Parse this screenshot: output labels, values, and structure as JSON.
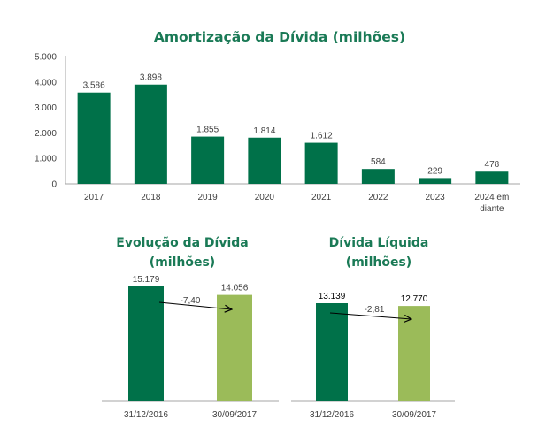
{
  "chart_data": [
    {
      "type": "bar",
      "title": "Amortização da Dívida (milhões)",
      "xlabel": "",
      "ylabel": "",
      "ylim": [
        0,
        5000
      ],
      "yticks": [
        0,
        1000,
        2000,
        3000,
        4000,
        5000
      ],
      "ytick_labels": [
        "0",
        "1.000",
        "2.000",
        "3.000",
        "4.000",
        "5.000"
      ],
      "grid": false,
      "categories": [
        "2017",
        "2018",
        "2019",
        "2020",
        "2021",
        "2022",
        "2023",
        "2024 em diante"
      ],
      "category_lines": [
        [
          "2017"
        ],
        [
          "2018"
        ],
        [
          "2019"
        ],
        [
          "2020"
        ],
        [
          "2021"
        ],
        [
          "2022"
        ],
        [
          "2023"
        ],
        [
          "2024 em",
          "diante"
        ]
      ],
      "values": [
        3586,
        3898,
        1855,
        1814,
        1612,
        584,
        229,
        478
      ],
      "value_labels": [
        "3.586",
        "3.898",
        "1.855",
        "1.814",
        "1.612",
        "584",
        "229",
        "478"
      ],
      "color": "#007149"
    },
    {
      "type": "bar",
      "title_lines": [
        "Evolução da Dívida",
        "(milhões)"
      ],
      "categories": [
        "31/12/2016",
        "30/09/2017"
      ],
      "values": [
        15179,
        14056
      ],
      "value_labels": [
        "15.179",
        "14.056"
      ],
      "colors": [
        "#007149",
        "#9bbb59"
      ],
      "annotation": "-7,40"
    },
    {
      "type": "bar",
      "title_lines": [
        "Dívida Líquida",
        "(milhões)"
      ],
      "categories": [
        "31/12/2016",
        "30/09/2017"
      ],
      "values": [
        13139,
        12770
      ],
      "value_labels": [
        "13.139",
        "12.770"
      ],
      "colors": [
        "#007149",
        "#9bbb59"
      ],
      "annotation": "-2,81"
    }
  ]
}
